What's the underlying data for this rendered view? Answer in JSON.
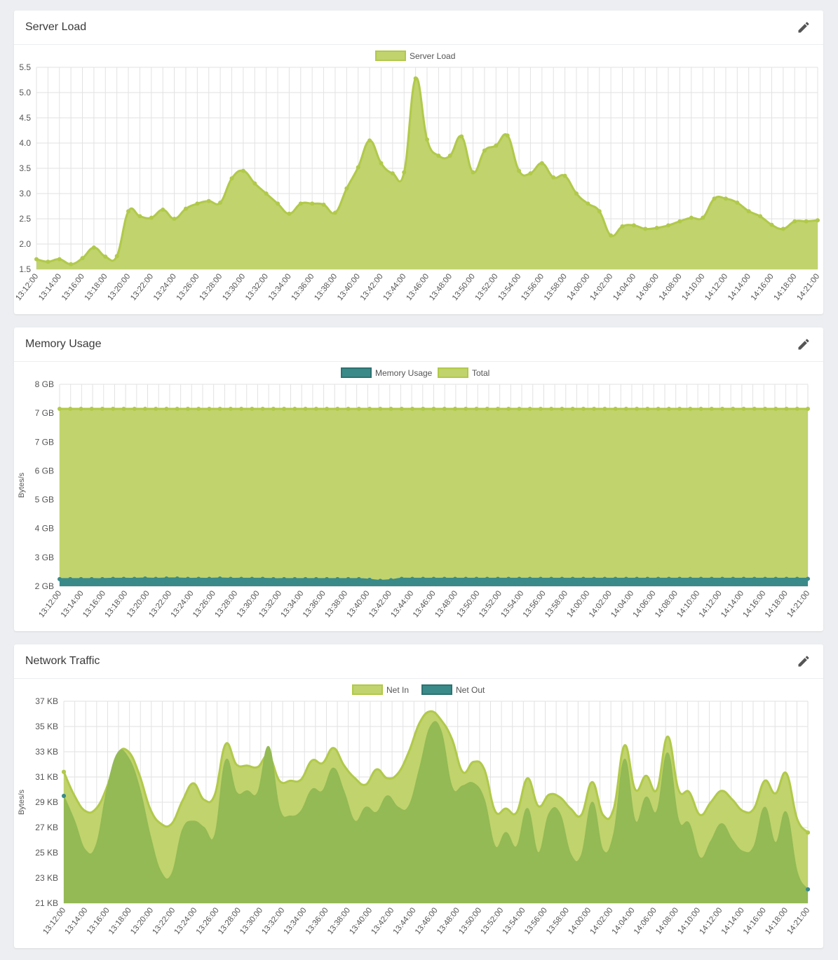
{
  "colors": {
    "green": "#b1c94a",
    "green_fill": "#c0d36d",
    "green_dark_fill": "#93ba54",
    "teal": "#3a8a89",
    "grid": "#e2e2e2"
  },
  "x_ticks": [
    "13:12:00",
    "13:14:00",
    "13:16:00",
    "13:18:00",
    "13:20:00",
    "13:22:00",
    "13:24:00",
    "13:26:00",
    "13:28:00",
    "13:30:00",
    "13:32:00",
    "13:34:00",
    "13:36:00",
    "13:38:00",
    "13:40:00",
    "13:42:00",
    "13:44:00",
    "13:46:00",
    "13:48:00",
    "13:50:00",
    "13:52:00",
    "13:54:00",
    "13:56:00",
    "13:58:00",
    "14:00:00",
    "14:02:00",
    "14:04:00",
    "14:06:00",
    "14:08:00",
    "14:10:00",
    "14:12:00",
    "14:14:00",
    "14:16:00",
    "14:18:00",
    "14:21:00"
  ],
  "cards": [
    {
      "title": "Server Load",
      "icon": "pencil-icon"
    },
    {
      "title": "Memory Usage",
      "icon": "pencil-icon"
    },
    {
      "title": "Network Traffic",
      "icon": "pencil-icon"
    }
  ],
  "chart_data": [
    {
      "type": "area",
      "title": "Server Load",
      "ylabel": "",
      "ylim": [
        1.5,
        5.5
      ],
      "y_ticks": [
        "1.5",
        "2.0",
        "2.5",
        "3.0",
        "3.5",
        "4.0",
        "4.5",
        "5.0",
        "5.5"
      ],
      "grid": true,
      "legend": "top-center",
      "series": [
        {
          "name": "Server Load",
          "color": "#b1c94a",
          "values": [
            1.7,
            1.65,
            1.7,
            1.6,
            1.72,
            1.93,
            1.75,
            1.76,
            2.65,
            2.55,
            2.52,
            2.68,
            2.5,
            2.7,
            2.8,
            2.85,
            2.82,
            3.3,
            3.45,
            3.2,
            3.0,
            2.8,
            2.6,
            2.8,
            2.8,
            2.78,
            2.62,
            3.1,
            3.52,
            4.05,
            3.6,
            3.4,
            3.42,
            5.28,
            4.07,
            3.75,
            3.75,
            4.13,
            3.42,
            3.85,
            3.95,
            4.15,
            3.45,
            3.4,
            3.6,
            3.32,
            3.35,
            3.0,
            2.8,
            2.65,
            2.17,
            2.35,
            2.37,
            2.3,
            2.32,
            2.37,
            2.45,
            2.52,
            2.52,
            2.9,
            2.9,
            2.82,
            2.65,
            2.55,
            2.38,
            2.3,
            2.45,
            2.45,
            2.47
          ]
        }
      ]
    },
    {
      "type": "area",
      "title": "Memory Usage",
      "ylabel": "Bytes/s",
      "y_ticks": [
        "2 GB",
        "3 GB",
        "4 GB",
        "5 GB",
        "6 GB",
        "7 GB",
        "7 GB",
        "8 GB"
      ],
      "grid": true,
      "legend": "top-center",
      "series": [
        {
          "name": "Memory Usage",
          "color": "#3a8a89",
          "fill": true,
          "values_gb": [
            2.21,
            2.21,
            2.21,
            2.21,
            2.21,
            2.22,
            2.22,
            2.22,
            2.23,
            2.22,
            2.23,
            2.23,
            2.22,
            2.22,
            2.22,
            2.23,
            2.22,
            2.22,
            2.22,
            2.22,
            2.21,
            2.21,
            2.21,
            2.21,
            2.21,
            2.21,
            2.21,
            2.21,
            2.21,
            2.19,
            2.16,
            2.18,
            2.22,
            2.22,
            2.22,
            2.22,
            2.22,
            2.22,
            2.22,
            2.22,
            2.22,
            2.22,
            2.22,
            2.22,
            2.22,
            2.22,
            2.22,
            2.22,
            2.22,
            2.22,
            2.22,
            2.22,
            2.22,
            2.22,
            2.22,
            2.22,
            2.22,
            2.22,
            2.22,
            2.22,
            2.22,
            2.22,
            2.22,
            2.22,
            2.22,
            2.22,
            2.22,
            2.22,
            2.22,
            2.22,
            2.22
          ]
        },
        {
          "name": "Total",
          "color": "#b1c94a",
          "fill": true,
          "values_gb": [
            7.27,
            7.27,
            7.27,
            7.27,
            7.27,
            7.27,
            7.27,
            7.27,
            7.27,
            7.27,
            7.27,
            7.27,
            7.27,
            7.27,
            7.27,
            7.27,
            7.27,
            7.27,
            7.27,
            7.27,
            7.27,
            7.27,
            7.27,
            7.27,
            7.27,
            7.27,
            7.27,
            7.27,
            7.27,
            7.27,
            7.27,
            7.27,
            7.27,
            7.27,
            7.27,
            7.27,
            7.27,
            7.27,
            7.27,
            7.27,
            7.27,
            7.27,
            7.27,
            7.27,
            7.27,
            7.27,
            7.27,
            7.27,
            7.27,
            7.27,
            7.27,
            7.27,
            7.27,
            7.27,
            7.27,
            7.27,
            7.27,
            7.27,
            7.27,
            7.27,
            7.27,
            7.27,
            7.27,
            7.27,
            7.27,
            7.27,
            7.27,
            7.27,
            7.27,
            7.27,
            7.27
          ]
        }
      ]
    },
    {
      "type": "area",
      "title": "Network Traffic",
      "ylabel": "Bytes/s",
      "ylim_kb": [
        21,
        37
      ],
      "y_ticks": [
        "21 KB",
        "23 KB",
        "25 KB",
        "27 KB",
        "29 KB",
        "31 KB",
        "33 KB",
        "35 KB",
        "37 KB"
      ],
      "grid": true,
      "legend": "top-center",
      "series": [
        {
          "name": "Net In",
          "color": "#b1c94a",
          "fill": true,
          "values_kb": [
            31.4,
            29.5,
            28.3,
            28.5,
            30.2,
            32.8,
            33.0,
            31.2,
            28.5,
            27.3,
            27.3,
            29.1,
            30.5,
            29.2,
            29.6,
            33.6,
            32.0,
            31.9,
            31.8,
            32.7,
            30.7,
            30.7,
            30.8,
            32.3,
            32.1,
            33.3,
            31.9,
            30.9,
            30.4,
            31.6,
            30.9,
            31.3,
            33.0,
            35.3,
            36.2,
            35.5,
            34.0,
            31.4,
            32.2,
            31.6,
            28.3,
            28.5,
            28.2,
            30.9,
            28.7,
            29.6,
            29.4,
            28.5,
            28.0,
            30.6,
            28.0,
            28.5,
            33.5,
            30.0,
            31.1,
            30.0,
            34.2,
            30.0,
            29.8,
            28.0,
            29.0,
            29.9,
            29.2,
            28.3,
            28.5,
            30.7,
            29.7,
            31.3,
            27.7,
            26.6
          ]
        },
        {
          "name": "Net Out",
          "color": "#3a8a89",
          "fill_color": "#93ba54",
          "values_kb": [
            29.5,
            27.5,
            25.2,
            25.6,
            30.0,
            32.9,
            32.5,
            30.2,
            26.4,
            23.5,
            23.3,
            26.8,
            27.5,
            27.0,
            26.4,
            32.3,
            29.8,
            29.9,
            29.8,
            33.4,
            28.5,
            27.9,
            28.3,
            30.0,
            29.9,
            31.7,
            29.8,
            27.5,
            28.6,
            28.2,
            29.5,
            28.6,
            28.7,
            31.7,
            35.0,
            34.6,
            30.2,
            30.3,
            30.5,
            29.2,
            25.5,
            26.6,
            25.5,
            28.5,
            25.0,
            28.1,
            28.1,
            24.9,
            24.8,
            29.0,
            25.2,
            26.5,
            32.4,
            27.5,
            29.4,
            28.3,
            32.9,
            27.6,
            27.3,
            24.6,
            25.9,
            27.3,
            26.0,
            25.1,
            25.5,
            28.6,
            25.8,
            28.2,
            23.5,
            22.1
          ]
        }
      ]
    }
  ]
}
